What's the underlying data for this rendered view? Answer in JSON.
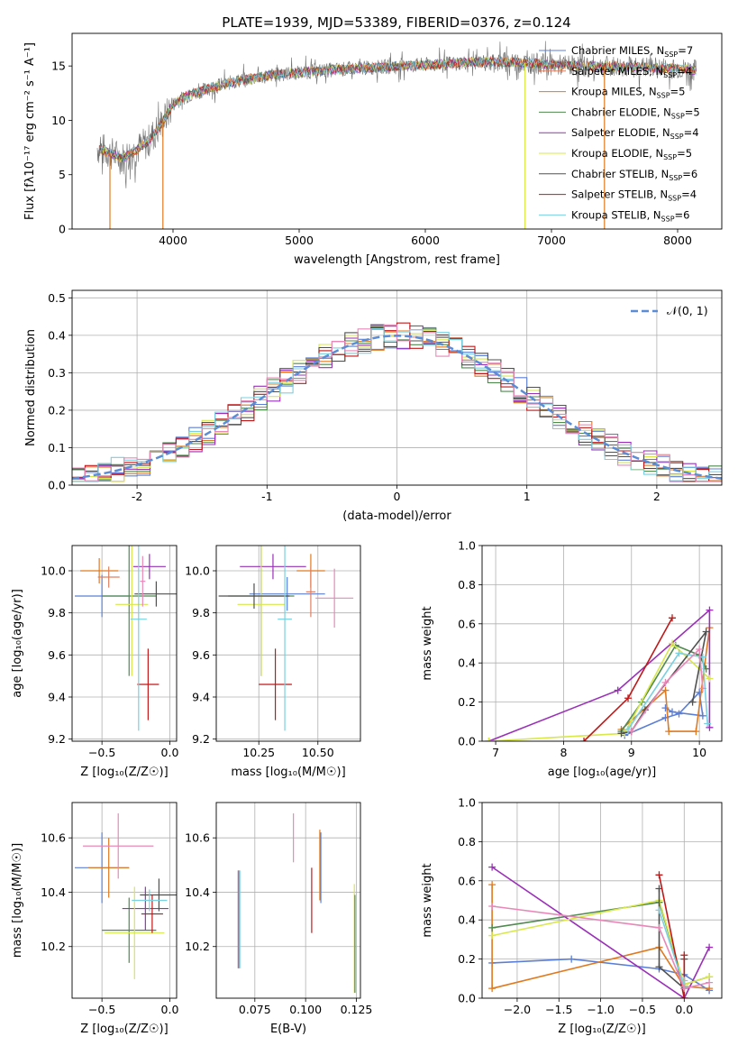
{
  "figure_title": "PLATE=1939, MJD=53389, FIBERID=0376, z=0.124",
  "colors": {
    "chabrier_miles": "#5b7fd6",
    "salpeter_miles": "#e08060",
    "kroupa_miles": "#e07a1f",
    "chabrier_elodie": "#4f8a4f",
    "salpeter_elodie": "#9a30b8",
    "kroupa_elodie": "#d8e84a",
    "chabrier_stelib": "#505050",
    "salpeter_stelib": "#c01818",
    "kroupa_stelib": "#78d0e0",
    "pink": "#e888b8",
    "grid": "#b0b0b0",
    "gaussian": "#5b8dd6"
  },
  "chart_data": [
    {
      "id": "spectrum",
      "type": "line",
      "xlabel": "wavelength [Angstrom, rest frame]",
      "ylabel": "Flux [fλ10⁻¹⁷ erg cm⁻² s⁻¹ A⁻¹]",
      "xlim": [
        3200,
        8350
      ],
      "ylim": [
        0,
        18
      ],
      "xticks": [
        4000,
        5000,
        6000,
        7000,
        8000
      ],
      "yticks": [
        0,
        5,
        10,
        15
      ],
      "grid": false,
      "legend_position": "top-right",
      "continuum": {
        "x": [
          3400,
          3500,
          3600,
          3700,
          3800,
          3900,
          4000,
          4100,
          4200,
          4300,
          4500,
          4800,
          5000,
          5200,
          5500,
          5800,
          6000,
          6300,
          6500,
          6800,
          7000,
          7300,
          7600,
          7900,
          8150
        ],
        "y": [
          7.5,
          7.0,
          6.5,
          7.2,
          8.0,
          9.5,
          11.5,
          12.2,
          12.6,
          13.0,
          13.6,
          14.2,
          14.4,
          14.6,
          14.8,
          15.0,
          15.1,
          15.3,
          15.4,
          15.3,
          15.1,
          15.0,
          14.9,
          14.8,
          14.6
        ]
      },
      "series": [
        {
          "name": "Chabrier MILES",
          "nssp": "7",
          "color_key": "chabrier_miles"
        },
        {
          "name": "Salpeter MILES",
          "nssp": "4",
          "color_key": "salpeter_miles"
        },
        {
          "name": "Kroupa MILES",
          "nssp": "5",
          "color_key": "kroupa_miles"
        },
        {
          "name": "Chabrier ELODIE",
          "nssp": "5",
          "color_key": "chabrier_elodie"
        },
        {
          "name": "Salpeter ELODIE",
          "nssp": "4",
          "color_key": "salpeter_elodie"
        },
        {
          "name": "Kroupa ELODIE",
          "nssp": "5",
          "color_key": "kroupa_elodie"
        },
        {
          "name": "Chabrier STELIB",
          "nssp": "6",
          "color_key": "chabrier_stelib"
        },
        {
          "name": "Salpeter STELIB",
          "nssp": "4",
          "color_key": "salpeter_stelib"
        },
        {
          "name": "Kroupa STELIB",
          "nssp": "6",
          "color_key": "kroupa_stelib"
        }
      ],
      "drops": [
        {
          "x": 3500,
          "color_key": "kroupa_miles"
        },
        {
          "x": 3920,
          "color_key": "kroupa_miles"
        },
        {
          "x": 6790,
          "color_key": "kroupa_elodie"
        },
        {
          "x": 7420,
          "color_key": "kroupa_miles"
        }
      ]
    },
    {
      "id": "residuals",
      "type": "line",
      "xlabel": "(data-model)/error",
      "ylabel": "Normed distribution",
      "xlim": [
        -2.5,
        2.5
      ],
      "ylim": [
        0,
        0.52
      ],
      "xticks": [
        -2,
        -1,
        0,
        1,
        2
      ],
      "yticks": [
        0.0,
        0.1,
        0.2,
        0.3,
        0.4,
        0.5
      ],
      "grid": true,
      "legend_position": "top-right",
      "legend": "𝒩(0, 1)",
      "bins": 50,
      "series_colors": [
        "chabrier_miles",
        "kroupa_miles",
        "chabrier_elodie",
        "salpeter_elodie",
        "kroupa_elodie",
        "chabrier_stelib",
        "salpeter_stelib",
        "kroupa_stelib",
        "pink"
      ]
    },
    {
      "id": "age_vs_Z",
      "type": "scatter",
      "xlabel": "Z [log₁₀(Z/Z☉)]",
      "ylabel": "age  [log₁₀(age/yr)]",
      "xlim": [
        -0.72,
        0.05
      ],
      "ylim": [
        9.19,
        10.12
      ],
      "xticks": [
        -0.5,
        0.0
      ],
      "xtick_labels": [
        "−0.5",
        "0.0"
      ],
      "yticks": [
        9.2,
        9.4,
        9.6,
        9.8,
        10.0
      ],
      "grid": true,
      "points": [
        {
          "x": -0.5,
          "y": 9.88,
          "xe": 0.2,
          "ye": 0.1,
          "color_key": "chabrier_miles"
        },
        {
          "x": -0.52,
          "y": 10.0,
          "xe": 0.14,
          "ye": 0.06,
          "color_key": "kroupa_miles"
        },
        {
          "x": -0.45,
          "y": 9.97,
          "xe": 0.08,
          "ye": 0.05,
          "color_key": "salpeter_miles"
        },
        {
          "x": -0.3,
          "y": 9.88,
          "xe": 0.2,
          "ye": 0.38,
          "color_key": "chabrier_elodie"
        },
        {
          "x": -0.15,
          "y": 10.02,
          "xe": 0.12,
          "ye": 0.06,
          "color_key": "salpeter_elodie"
        },
        {
          "x": -0.28,
          "y": 9.84,
          "xe": 0.12,
          "ye": 0.34,
          "color_key": "kroupa_elodie"
        },
        {
          "x": -0.1,
          "y": 9.89,
          "xe": 0.16,
          "ye": 0.06,
          "color_key": "chabrier_stelib"
        },
        {
          "x": -0.16,
          "y": 9.46,
          "xe": 0.08,
          "ye": 0.17,
          "color_key": "salpeter_stelib"
        },
        {
          "x": -0.23,
          "y": 9.77,
          "xe": 0.06,
          "ye": 0.53,
          "color_key": "kroupa_stelib"
        },
        {
          "x": -0.2,
          "y": 9.95,
          "xe": 0.02,
          "ye": 0.12,
          "color_key": "pink"
        }
      ]
    },
    {
      "id": "age_vs_mass",
      "type": "scatter",
      "xlabel": "mass [log₁₀(M/M☉)]",
      "ylabel": "",
      "xlim": [
        10.07,
        10.68
      ],
      "ylim": [
        9.19,
        10.12
      ],
      "xticks": [
        10.25,
        10.5
      ],
      "xtick_labels": [
        "10.25",
        "10.50"
      ],
      "yticks": [
        9.2,
        9.4,
        9.6,
        9.8,
        10.0
      ],
      "grid": true,
      "points": [
        {
          "x": 10.37,
          "y": 9.89,
          "xe": 0.16,
          "ye": 0.08,
          "color_key": "chabrier_miles"
        },
        {
          "x": 10.47,
          "y": 10.0,
          "xe": 0.06,
          "ye": 0.08,
          "color_key": "kroupa_miles"
        },
        {
          "x": 10.47,
          "y": 9.9,
          "xe": 0.02,
          "ye": 0.12,
          "color_key": "salpeter_miles"
        },
        {
          "x": 10.26,
          "y": 9.88,
          "xe": 0.14,
          "ye": 0.38,
          "color_key": "chabrier_elodie"
        },
        {
          "x": 10.31,
          "y": 10.02,
          "xe": 0.14,
          "ye": 0.06,
          "color_key": "salpeter_elodie"
        },
        {
          "x": 10.26,
          "y": 9.84,
          "xe": 0.1,
          "ye": 0.34,
          "color_key": "kroupa_elodie"
        },
        {
          "x": 10.23,
          "y": 9.88,
          "xe": 0.15,
          "ye": 0.06,
          "color_key": "chabrier_stelib"
        },
        {
          "x": 10.32,
          "y": 9.46,
          "xe": 0.07,
          "ye": 0.17,
          "color_key": "salpeter_stelib"
        },
        {
          "x": 10.36,
          "y": 9.77,
          "xe": 0.03,
          "ye": 0.53,
          "color_key": "kroupa_stelib"
        },
        {
          "x": 10.57,
          "y": 9.87,
          "xe": 0.08,
          "ye": 0.14,
          "color_key": "pink"
        }
      ]
    },
    {
      "id": "mass_weight_vs_age",
      "type": "line",
      "xlabel": "age  [log₁₀(age/yr)]",
      "ylabel": "mass weight",
      "xlim": [
        6.8,
        10.33
      ],
      "ylim": [
        0,
        1.0
      ],
      "xticks": [
        7,
        8,
        9,
        10
      ],
      "yticks": [
        0.0,
        0.2,
        0.4,
        0.6,
        0.8,
        1.0
      ],
      "grid": true,
      "series": [
        {
          "color_key": "chabrier_miles",
          "points": [
            [
              8.9,
              0.03
            ],
            [
              9.5,
              0.12
            ],
            [
              9.7,
              0.14
            ],
            [
              10.0,
              0.25
            ],
            [
              10.05,
              0.13
            ],
            [
              9.6,
              0.15
            ],
            [
              9.5,
              0.17
            ]
          ]
        },
        {
          "color_key": "kroupa_miles",
          "points": [
            [
              8.85,
              0.06
            ],
            [
              9.5,
              0.26
            ],
            [
              9.55,
              0.05
            ],
            [
              9.95,
              0.05
            ],
            [
              10.15,
              0.58
            ]
          ]
        },
        {
          "color_key": "chabrier_elodie",
          "points": [
            [
              8.85,
              0.05
            ],
            [
              9.15,
              0.2
            ],
            [
              9.65,
              0.49
            ],
            [
              10.0,
              0.44
            ],
            [
              10.1,
              0.37
            ]
          ]
        },
        {
          "color_key": "salpeter_elodie",
          "points": [
            [
              6.9,
              0.0
            ],
            [
              8.8,
              0.26
            ],
            [
              10.15,
              0.67
            ],
            [
              10.15,
              0.07
            ]
          ]
        },
        {
          "color_key": "kroupa_elodie",
          "points": [
            [
              6.9,
              0.0
            ],
            [
              8.9,
              0.04
            ],
            [
              9.6,
              0.5
            ],
            [
              10.15,
              0.32
            ]
          ]
        },
        {
          "color_key": "chabrier_stelib",
          "points": [
            [
              8.85,
              0.04
            ],
            [
              9.0,
              0.05
            ],
            [
              9.2,
              0.16
            ],
            [
              10.1,
              0.56
            ],
            [
              9.9,
              0.2
            ]
          ]
        },
        {
          "color_key": "salpeter_stelib",
          "points": [
            [
              8.3,
              0.0
            ],
            [
              8.95,
              0.22
            ],
            [
              9.6,
              0.63
            ]
          ]
        },
        {
          "color_key": "kroupa_stelib",
          "points": [
            [
              8.95,
              0.06
            ],
            [
              9.7,
              0.45
            ],
            [
              10.05,
              0.43
            ],
            [
              10.12,
              0.09
            ]
          ]
        },
        {
          "color_key": "pink",
          "points": [
            [
              9.0,
              0.05
            ],
            [
              9.5,
              0.3
            ],
            [
              10.0,
              0.47
            ],
            [
              10.05,
              0.27
            ]
          ]
        }
      ]
    },
    {
      "id": "mass_vs_Z",
      "type": "scatter",
      "xlabel": "Z [log₁₀(Z/Z☉)]",
      "ylabel": "mass [log₁₀(M/M☉)]",
      "xlim": [
        -0.72,
        0.05
      ],
      "ylim": [
        10.01,
        10.73
      ],
      "xticks": [
        -0.5,
        0.0
      ],
      "xtick_labels": [
        "−0.5",
        "0.0"
      ],
      "yticks": [
        10.2,
        10.4,
        10.6
      ],
      "grid": true,
      "points": [
        {
          "x": -0.5,
          "y": 10.49,
          "xe": 0.2,
          "ye": 0.13,
          "color_key": "chabrier_miles"
        },
        {
          "x": -0.45,
          "y": 10.49,
          "xe": 0.15,
          "ye": 0.11,
          "color_key": "kroupa_miles"
        },
        {
          "x": -0.38,
          "y": 10.57,
          "xe": 0.26,
          "ye": 0.12,
          "color_key": "pink"
        },
        {
          "x": -0.3,
          "y": 10.26,
          "xe": 0.2,
          "ye": 0.12,
          "color_key": "chabrier_elodie"
        },
        {
          "x": -0.18,
          "y": 10.34,
          "xe": 0.17,
          "ye": 0.08,
          "color_key": "salpeter_elodie"
        },
        {
          "x": -0.26,
          "y": 10.25,
          "xe": 0.22,
          "ye": 0.17,
          "color_key": "kroupa_elodie"
        },
        {
          "x": -0.08,
          "y": 10.39,
          "xe": 0.14,
          "ye": 0.06,
          "color_key": "chabrier_stelib"
        },
        {
          "x": -0.13,
          "y": 10.32,
          "xe": 0.08,
          "ye": 0.07,
          "color_key": "salpeter_stelib"
        },
        {
          "x": -0.15,
          "y": 10.37,
          "xe": 0.13,
          "ye": 0.04,
          "color_key": "kroupa_stelib"
        }
      ]
    },
    {
      "id": "mass_vs_ebv",
      "type": "scatter",
      "xlabel": "E(B-V)",
      "ylabel": "",
      "xlim": [
        0.056,
        0.127
      ],
      "ylim": [
        10.01,
        10.73
      ],
      "xticks": [
        0.075,
        0.1,
        0.125
      ],
      "xtick_labels": [
        "0.075",
        "0.100",
        "0.125"
      ],
      "yticks": [
        10.2,
        10.4,
        10.6
      ],
      "grid": true,
      "points": [
        {
          "x": 0.0668,
          "y": 10.3,
          "xe": 0,
          "ye": 0.18,
          "color_key": "chabrier_miles"
        },
        {
          "x": 0.0672,
          "y": 10.3,
          "xe": 0,
          "ye": 0.18,
          "color_key": "kroupa_miles"
        },
        {
          "x": 0.0676,
          "y": 10.3,
          "xe": 0,
          "ye": 0.18,
          "color_key": "kroupa_stelib"
        },
        {
          "x": 0.094,
          "y": 10.6,
          "xe": 0,
          "ye": 0.09,
          "color_key": "pink"
        },
        {
          "x": 0.103,
          "y": 10.37,
          "xe": 0,
          "ye": 0.12,
          "color_key": "salpeter_stelib"
        },
        {
          "x": 0.107,
          "y": 10.5,
          "xe": 0,
          "ye": 0.13,
          "color_key": "kroupa_miles"
        },
        {
          "x": 0.1075,
          "y": 10.49,
          "xe": 0,
          "ye": 0.13,
          "color_key": "chabrier_miles"
        },
        {
          "x": 0.124,
          "y": 10.23,
          "xe": 0,
          "ye": 0.2,
          "color_key": "kroupa_elodie"
        },
        {
          "x": 0.1243,
          "y": 10.21,
          "xe": 0,
          "ye": 0.18,
          "color_key": "chabrier_elodie"
        }
      ]
    },
    {
      "id": "mass_weight_vs_Z",
      "type": "line",
      "xlabel": "Z [log₁₀(Z/Z☉)]",
      "ylabel": "mass weight",
      "xlim": [
        -2.42,
        0.45
      ],
      "ylim": [
        0,
        1.0
      ],
      "xticks": [
        -2.0,
        -1.5,
        -1.0,
        -0.5,
        0.0
      ],
      "xtick_labels": [
        "−2.0",
        "−1.5",
        "−1.0",
        "−0.5",
        "0.0"
      ],
      "yticks": [
        0.0,
        0.2,
        0.4,
        0.6,
        0.8,
        1.0
      ],
      "grid": true,
      "series": [
        {
          "color_key": "chabrier_miles",
          "points": [
            [
              -2.3,
              0.18
            ],
            [
              -1.35,
              0.2
            ],
            [
              -0.3,
              0.15
            ],
            [
              0.0,
              0.12
            ],
            [
              0.3,
              0.04
            ]
          ]
        },
        {
          "color_key": "kroupa_miles",
          "points": [
            [
              -2.3,
              0.58
            ],
            [
              -2.3,
              0.05
            ],
            [
              -0.3,
              0.26
            ],
            [
              0.0,
              0.06
            ],
            [
              0.3,
              0.05
            ]
          ]
        },
        {
          "color_key": "chabrier_elodie",
          "points": [
            [
              -2.3,
              0.36
            ],
            [
              -0.3,
              0.49
            ],
            [
              0.0,
              0.07
            ],
            [
              0.3,
              0.11
            ]
          ]
        },
        {
          "color_key": "salpeter_elodie",
          "points": [
            [
              -2.3,
              0.67
            ],
            [
              0.0,
              0.0
            ],
            [
              0.3,
              0.26
            ]
          ]
        },
        {
          "color_key": "kroupa_elodie",
          "points": [
            [
              -2.3,
              0.32
            ],
            [
              -0.3,
              0.5
            ],
            [
              0.0,
              0.07
            ],
            [
              0.3,
              0.11
            ]
          ]
        },
        {
          "color_key": "chabrier_stelib",
          "points": [
            [
              -0.3,
              0.56
            ],
            [
              -0.3,
              0.16
            ],
            [
              0.0,
              0.05
            ],
            [
              0.0,
              0.2
            ]
          ]
        },
        {
          "color_key": "salpeter_stelib",
          "points": [
            [
              -0.3,
              0.63
            ],
            [
              0.0,
              0.0
            ],
            [
              0.0,
              0.22
            ]
          ]
        },
        {
          "color_key": "kroupa_stelib",
          "points": [
            [
              -0.3,
              0.45
            ],
            [
              0.0,
              0.06
            ],
            [
              0.0,
              0.09
            ]
          ]
        },
        {
          "color_key": "pink",
          "points": [
            [
              -2.3,
              0.47
            ],
            [
              -0.3,
              0.36
            ],
            [
              0.0,
              0.05
            ],
            [
              0.3,
              0.08
            ]
          ]
        }
      ]
    }
  ]
}
